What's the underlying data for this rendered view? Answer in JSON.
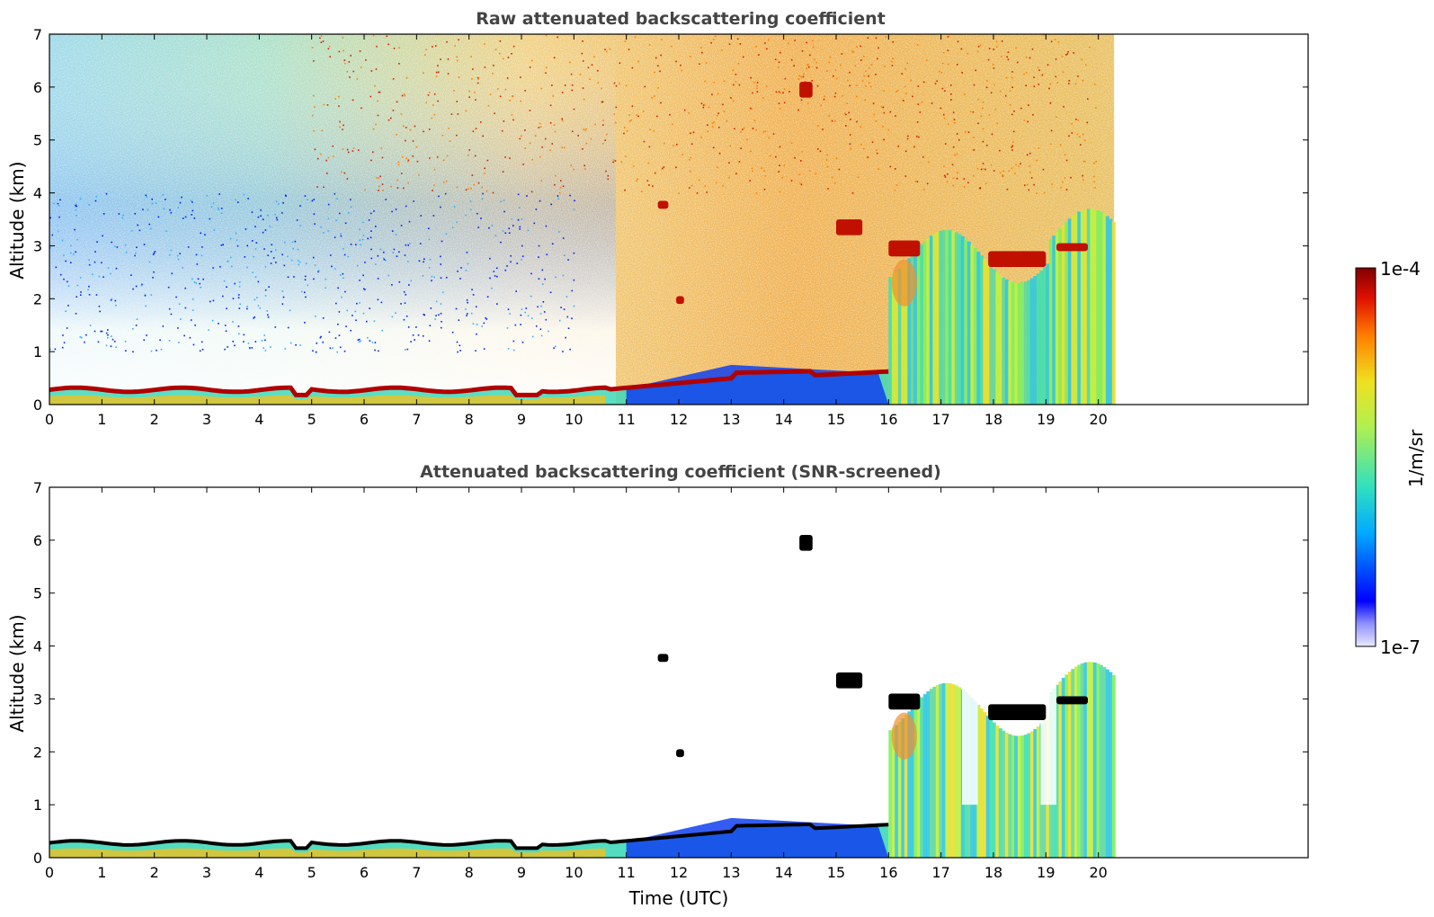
{
  "chart_data": [
    {
      "type": "heatmap",
      "title": "Raw attenuated backscattering coefficient",
      "xlabel": "",
      "ylabel": "Altitude (km)",
      "xlim": [
        0,
        24
      ],
      "ylim": [
        0,
        7
      ],
      "x_ticks": [
        "0",
        "1",
        "2",
        "3",
        "4",
        "5",
        "6",
        "7",
        "8",
        "9",
        "10",
        "11",
        "12",
        "13",
        "14",
        "15",
        "16",
        "17",
        "18",
        "19",
        "20"
      ],
      "y_ticks": [
        "0",
        "1",
        "2",
        "3",
        "4",
        "5",
        "6",
        "7"
      ],
      "data_end_time": 20.3,
      "features": [
        {
          "kind": "aerosol_layer_top",
          "times": [
            0,
            1,
            2,
            3,
            4,
            4.8,
            5,
            6,
            7,
            8,
            9,
            10,
            10.8,
            11,
            12,
            13,
            14,
            15,
            15.5,
            16
          ],
          "heights": [
            0.3,
            0.28,
            0.25,
            0.27,
            0.25,
            0.2,
            0.32,
            0.28,
            0.3,
            0.28,
            0.2,
            0.22,
            0.25,
            0.35,
            0.6,
            0.8,
            0.7,
            0.65,
            0.6,
            0.6
          ]
        },
        {
          "kind": "cloud",
          "t0": 14.3,
          "t1": 14.55,
          "z0": 5.8,
          "z1": 6.1
        },
        {
          "kind": "cloud",
          "t0": 11.6,
          "t1": 11.8,
          "z0": 3.7,
          "z1": 3.85
        },
        {
          "kind": "cloud",
          "t0": 15.0,
          "t1": 15.5,
          "z0": 3.2,
          "z1": 3.5
        },
        {
          "kind": "cloud",
          "t0": 16.0,
          "t1": 16.6,
          "z0": 2.8,
          "z1": 3.1
        },
        {
          "kind": "cloud",
          "t0": 17.9,
          "t1": 19.0,
          "z0": 2.6,
          "z1": 2.9
        },
        {
          "kind": "cloud",
          "t0": 19.2,
          "t1": 19.8,
          "z0": 2.9,
          "z1": 3.05
        },
        {
          "kind": "cloud",
          "t0": 11.95,
          "t1": 12.1,
          "z0": 1.9,
          "z1": 2.05
        }
      ]
    },
    {
      "type": "heatmap",
      "title": "Attenuated backscattering coefficient (SNR-screened)",
      "xlabel": "Time (UTC)",
      "ylabel": "Altitude (km)",
      "xlim": [
        0,
        24
      ],
      "ylim": [
        0,
        7
      ],
      "x_ticks": [
        "0",
        "1",
        "2",
        "3",
        "4",
        "5",
        "6",
        "7",
        "8",
        "9",
        "10",
        "11",
        "12",
        "13",
        "14",
        "15",
        "16",
        "17",
        "18",
        "19",
        "20"
      ],
      "y_ticks": [
        "0",
        "1",
        "2",
        "3",
        "4",
        "5",
        "6",
        "7"
      ],
      "data_end_time": 20.3
    }
  ],
  "colorbar": {
    "label": "1/m/sr",
    "max_label": "1e-4",
    "min_label": "1e-7",
    "colors": [
      "#e8e8ff",
      "#0000ff",
      "#00aaff",
      "#30e0c0",
      "#b0f050",
      "#f0e020",
      "#ff8000",
      "#e01000",
      "#800000"
    ]
  }
}
